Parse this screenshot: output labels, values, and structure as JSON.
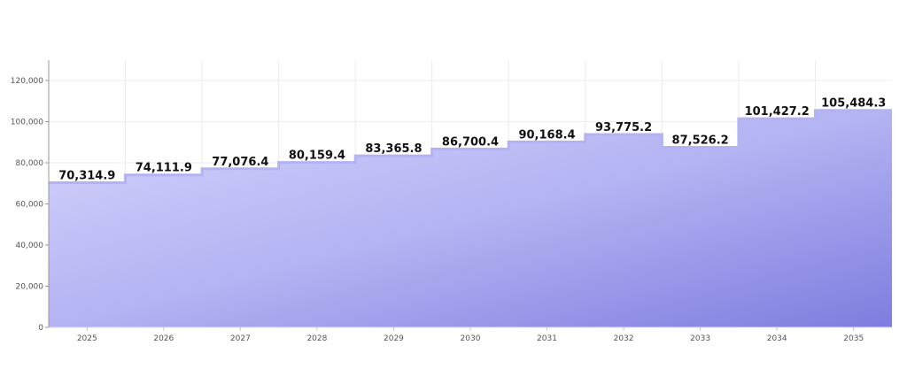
{
  "chart_data": {
    "type": "area",
    "subtype": "step",
    "title": "",
    "xlabel": "",
    "ylabel": "",
    "categories": [
      "2025",
      "2026",
      "2027",
      "2028",
      "2029",
      "2030",
      "2031",
      "2032",
      "2033",
      "2034",
      "2035"
    ],
    "values": [
      70314.9,
      74111.9,
      77076.4,
      80159.4,
      83365.8,
      86700.4,
      90168.4,
      93775.2,
      87526.2,
      101427.2,
      105484.3
    ],
    "data_labels": [
      "70,314.9",
      "74,111.9",
      "77,076.4",
      "80,159.4",
      "83,365.8",
      "86,700.4",
      "90,168.4",
      "93,775.2",
      "87,526.2",
      "101,427.2",
      "105,484.3"
    ],
    "ylim": [
      0,
      130000
    ],
    "yticks": [
      0,
      20000,
      40000,
      60000,
      80000,
      100000,
      120000
    ],
    "ytick_labels": [
      "0",
      "20,000",
      "40,000",
      "60,000",
      "80,000",
      "100,000",
      "120,000"
    ],
    "grid": true,
    "legend": null
  },
  "colors": {
    "fill_top_left": "#d3d2fb",
    "fill_bottom_right": "#7f7fe0",
    "line": "#b3b2f4",
    "grid": "#ececec",
    "axis": "#999999"
  }
}
